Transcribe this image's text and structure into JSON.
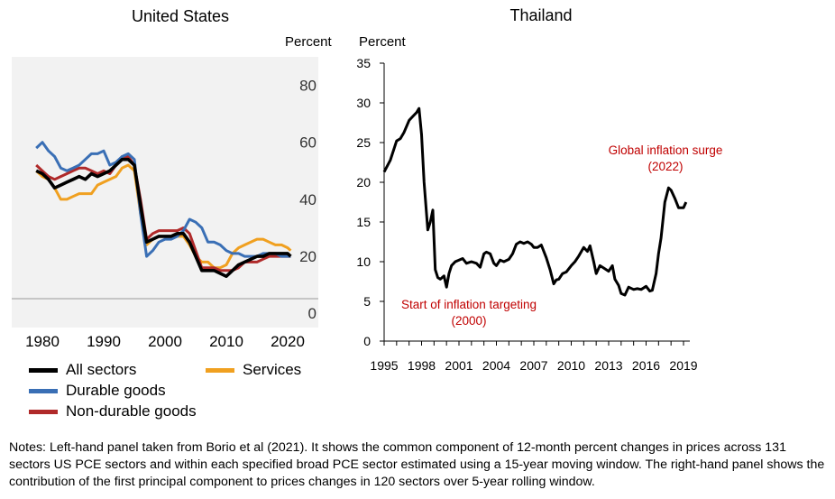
{
  "chart_data": [
    {
      "type": "line",
      "title": "United States",
      "ylabel": "Percent",
      "xlim": [
        1975,
        2025
      ],
      "ylim": [
        -5,
        90
      ],
      "x_ticks": [
        "1980",
        "1990",
        "2000",
        "2010",
        "2020"
      ],
      "y_ticks": [
        "0",
        "20",
        "40",
        "60",
        "80"
      ],
      "grid": false,
      "legend_position": "bottom",
      "series": [
        {
          "name": "All sectors",
          "color": "#000000",
          "x": [
            1979,
            1980,
            1981,
            1982,
            1983,
            1984,
            1985,
            1986,
            1987,
            1988,
            1989,
            1990,
            1991,
            1992,
            1993,
            1994,
            1995,
            1996,
            1997,
            1998,
            1999,
            2000,
            2001,
            2002,
            2003,
            2004,
            2005,
            2006,
            2007,
            2008,
            2009,
            2010,
            2011,
            2012,
            2013,
            2014,
            2015,
            2016,
            2017,
            2018,
            2019,
            2020,
            2020.5
          ],
          "y": [
            50,
            49,
            47,
            44,
            45,
            46,
            47,
            48,
            47,
            49,
            48,
            49,
            50,
            52,
            54,
            54,
            52,
            38,
            25,
            26,
            27,
            27,
            27,
            28,
            28,
            25,
            20,
            15,
            15,
            15,
            14,
            13,
            15,
            17,
            18,
            19,
            20,
            20,
            21,
            21,
            21,
            21,
            20
          ]
        },
        {
          "name": "Durable goods",
          "color": "#3a6fb5",
          "x": [
            1979,
            1980,
            1981,
            1982,
            1983,
            1984,
            1985,
            1986,
            1987,
            1988,
            1989,
            1990,
            1991,
            1992,
            1993,
            1994,
            1995,
            1996,
            1997,
            1998,
            1999,
            2000,
            2001,
            2002,
            2003,
            2004,
            2005,
            2006,
            2007,
            2008,
            2009,
            2010,
            2011,
            2012,
            2013,
            2014,
            2015,
            2016,
            2017,
            2018,
            2019,
            2020,
            2020.5
          ],
          "y": [
            58,
            60,
            57,
            55,
            51,
            50,
            51,
            52,
            54,
            56,
            56,
            57,
            52,
            53,
            55,
            56,
            54,
            35,
            20,
            22,
            25,
            26,
            26,
            27,
            29,
            33,
            32,
            30,
            25,
            25,
            24,
            22,
            21,
            21,
            20,
            20,
            20,
            21,
            21,
            21,
            20,
            20,
            20
          ]
        },
        {
          "name": "Non-durable goods",
          "color": "#b02a2a",
          "x": [
            1979,
            1980,
            1981,
            1982,
            1983,
            1984,
            1985,
            1986,
            1987,
            1988,
            1989,
            1990,
            1991,
            1992,
            1993,
            1994,
            1995,
            1996,
            1997,
            1998,
            1999,
            2000,
            2001,
            2002,
            2003,
            2004,
            2005,
            2006,
            2007,
            2008,
            2009,
            2010,
            2011,
            2012,
            2013,
            2014,
            2015,
            2016,
            2017,
            2018,
            2019,
            2020,
            2020.5
          ],
          "y": [
            52,
            50,
            48,
            47,
            48,
            49,
            50,
            51,
            51,
            50,
            49,
            50,
            49,
            52,
            55,
            55,
            52,
            40,
            26,
            28,
            29,
            29,
            29,
            29,
            30,
            28,
            22,
            16,
            16,
            16,
            15,
            15,
            15,
            16,
            18,
            18,
            18,
            19,
            20,
            20,
            20,
            20,
            20
          ]
        },
        {
          "name": "Services",
          "color": "#f0a020",
          "x": [
            1979,
            1980,
            1981,
            1982,
            1983,
            1984,
            1985,
            1986,
            1987,
            1988,
            1989,
            1990,
            1991,
            1992,
            1993,
            1994,
            1995,
            1996,
            1997,
            1998,
            1999,
            2000,
            2001,
            2002,
            2003,
            2004,
            2005,
            2006,
            2007,
            2008,
            2009,
            2010,
            2011,
            2012,
            2013,
            2014,
            2015,
            2016,
            2017,
            2018,
            2019,
            2020,
            2020.5
          ],
          "y": [
            50,
            48,
            47,
            44,
            40,
            40,
            41,
            42,
            42,
            42,
            45,
            46,
            47,
            48,
            51,
            52,
            50,
            35,
            24,
            26,
            27,
            27,
            27,
            27,
            27,
            24,
            20,
            18,
            18,
            16,
            16,
            17,
            21,
            23,
            24,
            25,
            26,
            26,
            25,
            24,
            24,
            23,
            22
          ]
        }
      ]
    },
    {
      "type": "line",
      "title": "Thailand",
      "ylabel": "Percent",
      "xlim": [
        1995,
        2019.5
      ],
      "ylim": [
        0,
        35
      ],
      "x_ticks": [
        "1995",
        "1998",
        "2001",
        "2004",
        "2007",
        "2010",
        "2013",
        "2016",
        "2019"
      ],
      "y_ticks": [
        "0",
        "5",
        "10",
        "15",
        "20",
        "25",
        "30",
        "35"
      ],
      "grid": false,
      "annotations": [
        {
          "text": "Global inflation surge",
          "text2": "(2022)",
          "color": "#c00000"
        },
        {
          "text": "Start of inflation targeting",
          "text2": "(2000)",
          "color": "#c00000"
        }
      ],
      "series": [
        {
          "name": "",
          "color": "#000000",
          "x": [
            1995,
            1995.5,
            1996,
            1996.3,
            1996.6,
            1997,
            1997.3,
            1997.6,
            1997.8,
            1998,
            1998.2,
            1998.5,
            1998.7,
            1998.9,
            1999.1,
            1999.3,
            1999.5,
            1999.8,
            2000,
            2000.2,
            2000.4,
            2000.7,
            2001,
            2001.3,
            2001.6,
            2002,
            2002.4,
            2002.7,
            2003,
            2003.2,
            2003.5,
            2003.8,
            2004,
            2004.3,
            2004.6,
            2005,
            2005.3,
            2005.6,
            2005.9,
            2006.2,
            2006.5,
            2006.8,
            2007,
            2007.3,
            2007.6,
            2008,
            2008.3,
            2008.6,
            2008.8,
            2009,
            2009.3,
            2009.6,
            2010,
            2010.3,
            2010.6,
            2011,
            2011.3,
            2011.5,
            2011.8,
            2012,
            2012.3,
            2012.6,
            2013,
            2013.3,
            2013.5,
            2013.8,
            2014,
            2014.3,
            2014.6,
            2015,
            2015.3,
            2015.6,
            2016,
            2016.3,
            2016.5,
            2016.8,
            2017,
            2017.2,
            2017.5,
            2017.8,
            2018,
            2018.3,
            2018.6,
            2019,
            2019.2
          ],
          "y": [
            21.3,
            22.8,
            25.2,
            25.5,
            26.3,
            27.8,
            28.3,
            28.8,
            29.3,
            26.0,
            20.0,
            14.0,
            15.0,
            16.5,
            9.0,
            8.0,
            7.8,
            8.2,
            6.8,
            8.5,
            9.5,
            10.0,
            10.2,
            10.4,
            9.8,
            10.0,
            9.8,
            9.3,
            11.0,
            11.2,
            11.0,
            9.8,
            9.5,
            10.2,
            10.0,
            10.3,
            11.0,
            12.2,
            12.5,
            12.3,
            12.5,
            12.2,
            11.8,
            11.8,
            12.1,
            10.5,
            9.0,
            7.2,
            7.7,
            7.8,
            8.5,
            8.7,
            9.5,
            10.0,
            10.7,
            11.8,
            11.3,
            12.0,
            10.0,
            8.5,
            9.5,
            9.2,
            8.8,
            9.5,
            7.8,
            7.0,
            6.0,
            5.8,
            6.8,
            6.5,
            6.6,
            6.5,
            6.9,
            6.3,
            6.4,
            8.5,
            11.0,
            13.0,
            17.5,
            19.3,
            19.0,
            18.0,
            16.8,
            16.8,
            17.5
          ]
        }
      ]
    }
  ],
  "notes": {
    "text": "Notes: Left-hand panel taken from Borio et al (2021). It shows the common component of 12-month percent changes in prices across 131 sectors US PCE sectors and within each specified broad PCE sector estimated using a 15-year moving window. The right-hand panel shows the contribution of the first principal component to prices changes in 120 sectors over 5-year rolling window."
  },
  "colors": {
    "plot_background": "#f2f2f2",
    "annotation": "#c00000"
  }
}
